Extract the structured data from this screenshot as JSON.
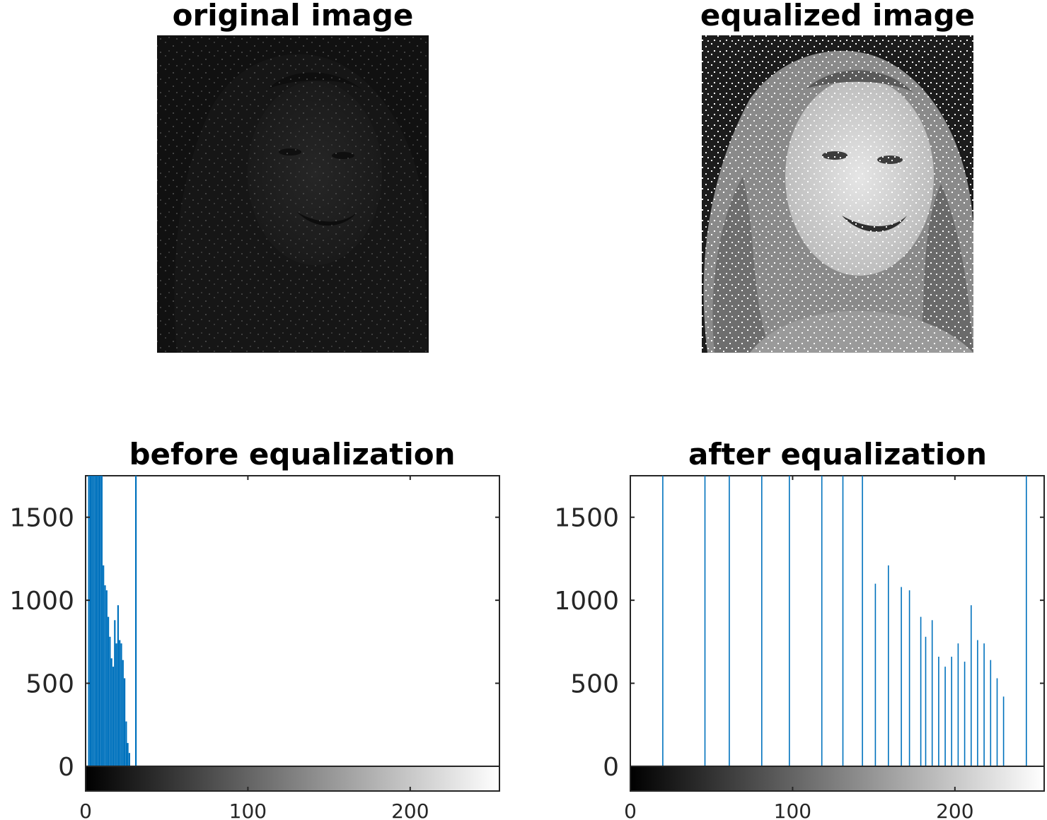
{
  "figure": {
    "images": [
      {
        "title": "original image",
        "tone": "dark"
      },
      {
        "title": "equalized image",
        "tone": "equalized"
      }
    ]
  },
  "chart_data": [
    {
      "type": "bar",
      "title": "before equalization",
      "xlabel": "",
      "ylabel": "",
      "xlim": [
        0,
        255
      ],
      "ylim": [
        0,
        1750
      ],
      "yticks": [
        0,
        500,
        1000,
        1500
      ],
      "colorbar_ticks": [
        0,
        100,
        200
      ],
      "bar_color": "#0072BD",
      "x": [
        2,
        3,
        4,
        5,
        6,
        7,
        8,
        9,
        10,
        11,
        12,
        13,
        14,
        15,
        16,
        17,
        18,
        19,
        20,
        21,
        22,
        23,
        24,
        25,
        26,
        27,
        31
      ],
      "values": [
        1750,
        1750,
        1750,
        1750,
        1750,
        1750,
        1750,
        1750,
        1750,
        1210,
        1090,
        1060,
        900,
        780,
        650,
        600,
        880,
        740,
        970,
        760,
        740,
        640,
        530,
        270,
        140,
        80,
        1750
      ]
    },
    {
      "type": "bar",
      "title": "after equalization",
      "xlabel": "",
      "ylabel": "",
      "xlim": [
        0,
        255
      ],
      "ylim": [
        0,
        1750
      ],
      "yticks": [
        0,
        500,
        1000,
        1500
      ],
      "colorbar_ticks": [
        0,
        100,
        200
      ],
      "bar_color": "#0072BD",
      "x": [
        20,
        46,
        61,
        81,
        98,
        118,
        131,
        143,
        151,
        159,
        167,
        172,
        179,
        182,
        186,
        190,
        194,
        198,
        202,
        206,
        210,
        214,
        218,
        222,
        226,
        230,
        244
      ],
      "values": [
        1750,
        1750,
        1750,
        1750,
        1750,
        1750,
        1750,
        1750,
        1100,
        1210,
        1080,
        1060,
        900,
        780,
        880,
        660,
        600,
        660,
        740,
        630,
        970,
        760,
        740,
        640,
        530,
        420,
        1750
      ]
    }
  ]
}
